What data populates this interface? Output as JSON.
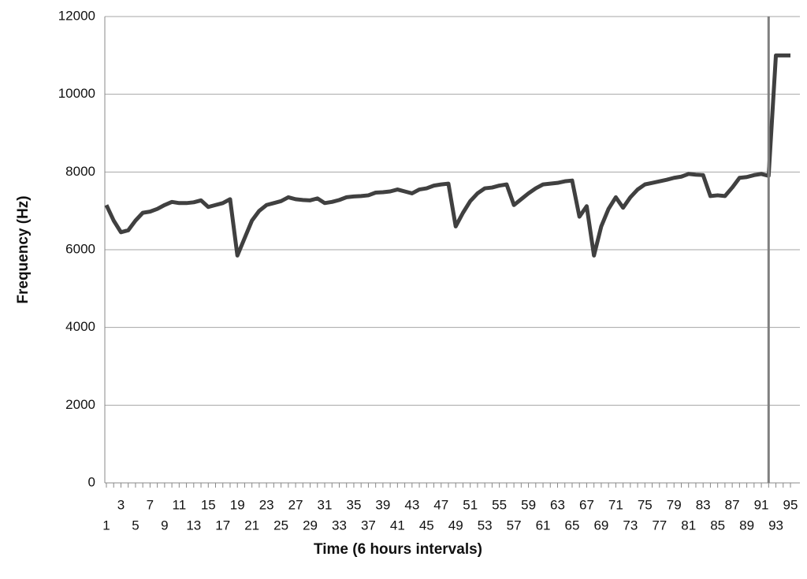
{
  "chart_data": {
    "type": "line",
    "x_label": "Time (6 hours intervals)",
    "y_label": "Frequency (Hz)",
    "categories": [
      1,
      null,
      3,
      null,
      5,
      null,
      7,
      null,
      9,
      null,
      11,
      null,
      13,
      null,
      15,
      null,
      17,
      null,
      19,
      null,
      21,
      null,
      23,
      null,
      25,
      null,
      27,
      null,
      29,
      null,
      31,
      null,
      33,
      null,
      35,
      null,
      37,
      null,
      39,
      null,
      41,
      null,
      43,
      null,
      45,
      null,
      47,
      null,
      49,
      null,
      51,
      null,
      53,
      null,
      55,
      null,
      57,
      null,
      59,
      null,
      61,
      null,
      63,
      null,
      65,
      null,
      67,
      null,
      69,
      null,
      71,
      null,
      73,
      null,
      75,
      null,
      77,
      null,
      79,
      null,
      81,
      null,
      83,
      null,
      85,
      null,
      87,
      null,
      89,
      null,
      91,
      null,
      93,
      null,
      95
    ],
    "series": [
      {
        "color": "#404040",
        "values": [
          7150,
          6750,
          6450,
          6500,
          6750,
          6950,
          6980,
          7050,
          7150,
          7230,
          7200,
          7200,
          7220,
          7270,
          7100,
          7150,
          7200,
          7300,
          5850,
          6300,
          6750,
          7000,
          7150,
          7200,
          7250,
          7350,
          7300,
          7280,
          7270,
          7320,
          7200,
          7230,
          7280,
          7350,
          7370,
          7380,
          7400,
          7470,
          7480,
          7500,
          7550,
          7500,
          7450,
          7550,
          7580,
          7650,
          7680,
          7700,
          6600,
          6950,
          7250,
          7450,
          7580,
          7600,
          7650,
          7680,
          7150,
          7300,
          7450,
          7580,
          7680,
          7700,
          7720,
          7760,
          7780,
          6850,
          7120,
          5850,
          6600,
          7050,
          7350,
          7080,
          7350,
          7550,
          7680,
          7720,
          7760,
          7800,
          7850,
          7880,
          7950,
          7930,
          7920,
          7380,
          7400,
          7380,
          7600,
          7850,
          7870,
          7920,
          7950,
          7900,
          11000,
          11000,
          11000
        ]
      }
    ],
    "vertical_line": {
      "category": 92,
      "color": "#7f7f7f"
    },
    "ylim": [
      0,
      12000
    ],
    "yticks": [
      0,
      2000,
      4000,
      6000,
      8000,
      10000,
      12000
    ],
    "grid": true
  }
}
